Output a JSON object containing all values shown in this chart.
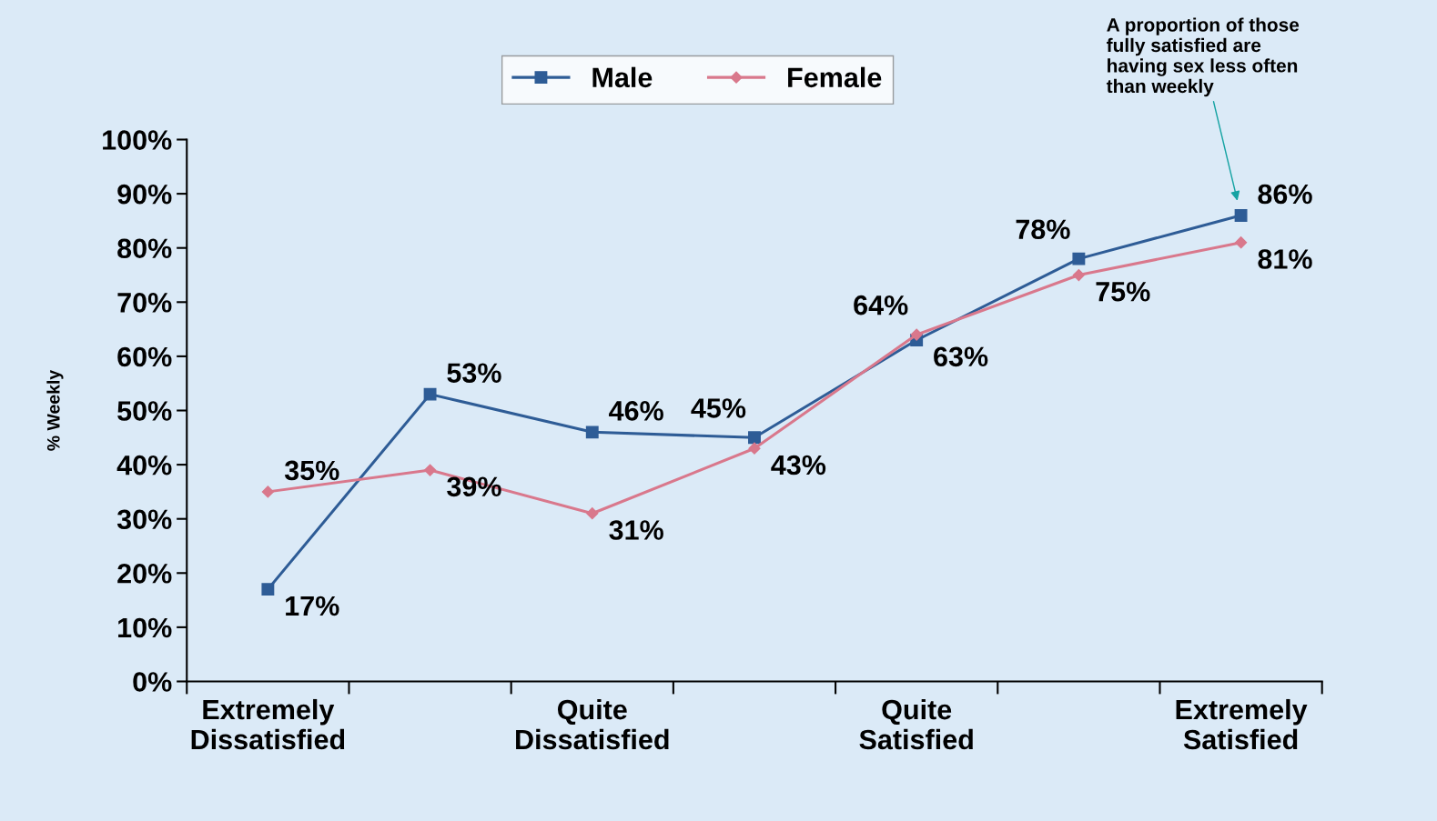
{
  "chart_data": {
    "type": "line",
    "ylabel": "% Weekly",
    "categories": [
      "Extremely\nDissatisfied",
      null,
      "Quite\nDissatisfied",
      null,
      "Quite\nSatisfied",
      null,
      "Extremely\nSatisfied"
    ],
    "series": [
      {
        "name": "Male",
        "color": "#2e5c96",
        "marker": "square",
        "values": [
          17,
          53,
          46,
          45,
          63,
          78,
          86
        ],
        "value_labels": [
          "17%",
          "53%",
          "46%",
          "45%",
          "63%",
          "78%",
          "86%"
        ]
      },
      {
        "name": "Female",
        "color": "#d9788c",
        "marker": "diamond",
        "values": [
          35,
          39,
          31,
          43,
          64,
          75,
          81
        ],
        "value_labels": [
          "35%",
          "39%",
          "31%",
          "43%",
          "64%",
          "75%",
          "81%"
        ]
      }
    ],
    "ylim": [
      0,
      100
    ],
    "yticks": [
      {
        "value": 0,
        "label": "0%"
      },
      {
        "value": 10,
        "label": "10%"
      },
      {
        "value": 20,
        "label": "20%"
      },
      {
        "value": 30,
        "label": "30%"
      },
      {
        "value": 40,
        "label": "40%"
      },
      {
        "value": 50,
        "label": "50%"
      },
      {
        "value": 60,
        "label": "60%"
      },
      {
        "value": 70,
        "label": "70%"
      },
      {
        "value": 80,
        "label": "80%"
      },
      {
        "value": 90,
        "label": "90%"
      },
      {
        "value": 100,
        "label": "100%"
      }
    ],
    "grid": false,
    "legend": "top",
    "annotations": [
      "A proportion of those\nfully satisfied are\nhaving sex less often\nthan weekly"
    ]
  }
}
